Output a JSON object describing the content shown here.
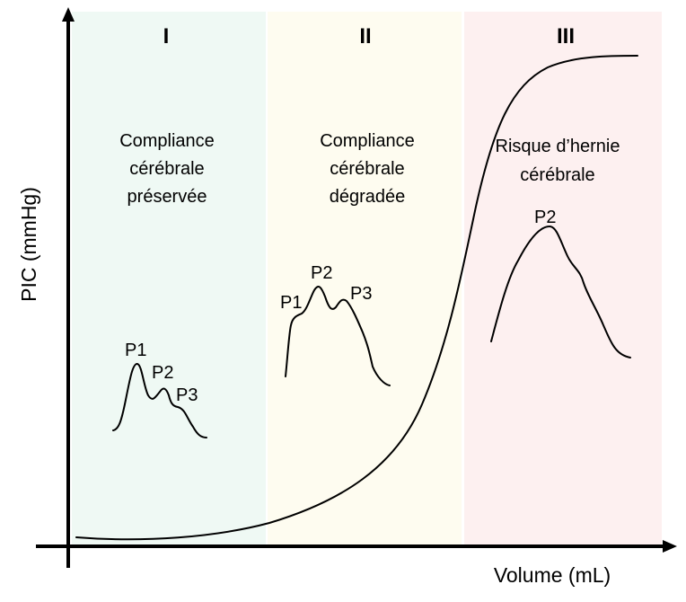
{
  "axes": {
    "y_label": "PIC (mmHg)",
    "x_label": "Volume (mL)"
  },
  "zones": [
    {
      "numeral": "I",
      "description": [
        "Compliance",
        "cérébrale",
        "préservée"
      ],
      "color": "#eff9f4",
      "peaks": [
        "P1",
        "P2",
        "P3"
      ]
    },
    {
      "numeral": "II",
      "description": [
        "Compliance",
        "cérébrale",
        "dégradée"
      ],
      "color": "#fefcf0",
      "peaks": [
        "P1",
        "P2",
        "P3"
      ]
    },
    {
      "numeral": "III",
      "description": [
        "Risque d’hernie",
        "cérébrale"
      ],
      "color": "#fdf0f0",
      "peaks": [
        "P2"
      ]
    }
  ]
}
